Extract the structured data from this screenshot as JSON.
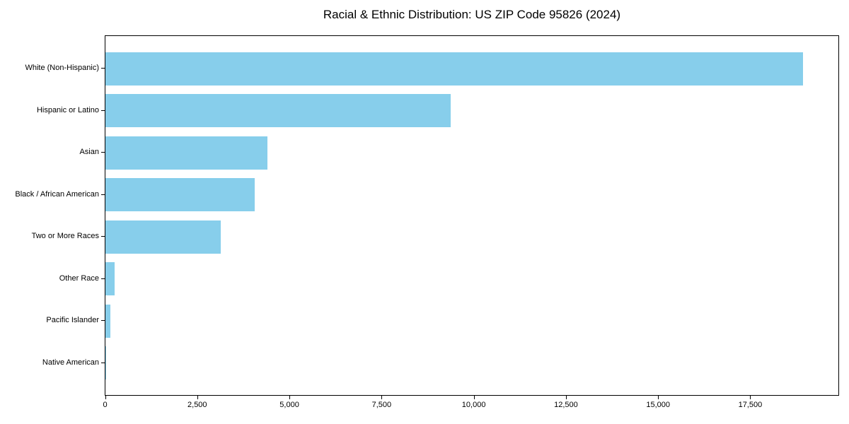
{
  "chart_data": {
    "type": "bar",
    "orientation": "horizontal",
    "title": "Racial & Ethnic Distribution: US ZIP Code 95826 (2024)",
    "categories": [
      "White (Non-Hispanic)",
      "Hispanic or Latino",
      "Asian",
      "Black / African American",
      "Two or More Races",
      "Other Race",
      "Pacific Islander",
      "Native American"
    ],
    "values": [
      18930,
      9370,
      4400,
      4040,
      3120,
      255,
      130,
      25
    ],
    "xlabel": "",
    "ylabel": "",
    "xlim": [
      0,
      19880
    ],
    "xticks": [
      0,
      2500,
      5000,
      7500,
      10000,
      12500,
      15000,
      17500
    ],
    "xtick_labels": [
      "0",
      "2,500",
      "5,000",
      "7,500",
      "10,000",
      "12,500",
      "15,000",
      "17,500"
    ],
    "bar_color": "#87CEEB",
    "axis_color": "#000000",
    "background": "#FFFFFF",
    "grid": false,
    "legend": null
  }
}
